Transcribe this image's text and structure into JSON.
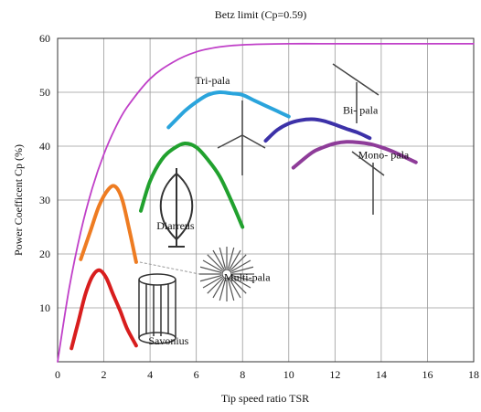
{
  "chart_data": {
    "type": "line",
    "title": "Betz limit (Cp=0.59)",
    "xlabel": "Tip speed ratio TSR",
    "ylabel": "Power Coefficent Cp (%)",
    "xlim": [
      0,
      18
    ],
    "ylim": [
      0,
      60
    ],
    "x_ticks": [
      "0",
      "2",
      "4",
      "6",
      "8",
      "10",
      "12",
      "14",
      "16",
      "18"
    ],
    "y_ticks": [
      "10",
      "20",
      "30",
      "40",
      "50",
      "60"
    ],
    "grid": true,
    "series": [
      {
        "name": "Betz limit (Cp=0.59)",
        "color": "#c040c8",
        "x": [
          0,
          0.5,
          1,
          1.5,
          2,
          2.5,
          3,
          4,
          5,
          6,
          7,
          8,
          10,
          12,
          14,
          16,
          18
        ],
        "y": [
          0,
          13.6,
          24.1,
          32.2,
          38.5,
          43.4,
          47.2,
          52.5,
          55.6,
          57.5,
          58.4,
          58.8,
          59.0,
          59.0,
          59.0,
          59.0,
          59.0
        ]
      },
      {
        "name": "Savonius",
        "color": "#d81e1e",
        "x": [
          0.6,
          0.9,
          1.2,
          1.5,
          1.8,
          2.1,
          2.4,
          2.7,
          3.0,
          3.4
        ],
        "y": [
          2.5,
          7.5,
          12.5,
          15.8,
          17.0,
          15.6,
          12.5,
          9.5,
          6.2,
          3.0
        ]
      },
      {
        "name": "Multi-pala",
        "color": "#ee7c22",
        "x": [
          1.0,
          1.4,
          1.8,
          2.2,
          2.5,
          2.8,
          3.1,
          3.4
        ],
        "y": [
          19,
          24,
          29,
          32,
          32.5,
          30,
          24.5,
          18.5
        ]
      },
      {
        "name": "Diarreus",
        "color": "#21a12e",
        "x": [
          3.6,
          4.0,
          4.5,
          5.0,
          5.5,
          6.0,
          6.5,
          7.0,
          7.5,
          8.0
        ],
        "y": [
          28,
          33.5,
          37.5,
          39.5,
          40.5,
          39.8,
          37.5,
          34.5,
          30,
          25
        ]
      },
      {
        "name": "Tri-pala",
        "color": "#2aa4dc",
        "x": [
          4.8,
          5.5,
          6.0,
          6.5,
          7.0,
          7.5,
          8.0,
          8.5,
          9.0,
          9.5,
          10.0
        ],
        "y": [
          43.5,
          46.5,
          48.2,
          49.5,
          50.0,
          49.8,
          49.5,
          48.5,
          47.5,
          46.5,
          45.5
        ]
      },
      {
        "name": "Bi- pala",
        "color": "#3c31a8",
        "x": [
          9.0,
          9.5,
          10.0,
          10.5,
          11.0,
          11.5,
          12.0,
          12.5,
          13.0,
          13.5
        ],
        "y": [
          41,
          43,
          44.2,
          44.8,
          45.0,
          44.7,
          44.0,
          43.2,
          42.5,
          41.5
        ]
      },
      {
        "name": "Mono- pala",
        "color": "#8e3c99",
        "x": [
          10.2,
          11.0,
          11.5,
          12.0,
          12.5,
          13.0,
          13.5,
          14.0,
          14.5,
          15.0,
          15.5
        ],
        "y": [
          36,
          38.8,
          39.8,
          40.5,
          40.8,
          40.7,
          40.4,
          39.8,
          39.0,
          38.0,
          37.0
        ]
      }
    ],
    "annotations": [
      {
        "text": "Tri-pala",
        "x": 6.7,
        "y": 51.5
      },
      {
        "text": "Bi- pala",
        "x": 13.1,
        "y": 46.0
      },
      {
        "text": "Mono- pala",
        "x": 14.1,
        "y": 37.7
      },
      {
        "text": "Diarreus",
        "x": 5.1,
        "y": 24.6
      },
      {
        "text": "Multi-pala",
        "x": 8.2,
        "y": 15.0
      },
      {
        "text": "Savonius",
        "x": 4.8,
        "y": 3.2
      }
    ]
  }
}
